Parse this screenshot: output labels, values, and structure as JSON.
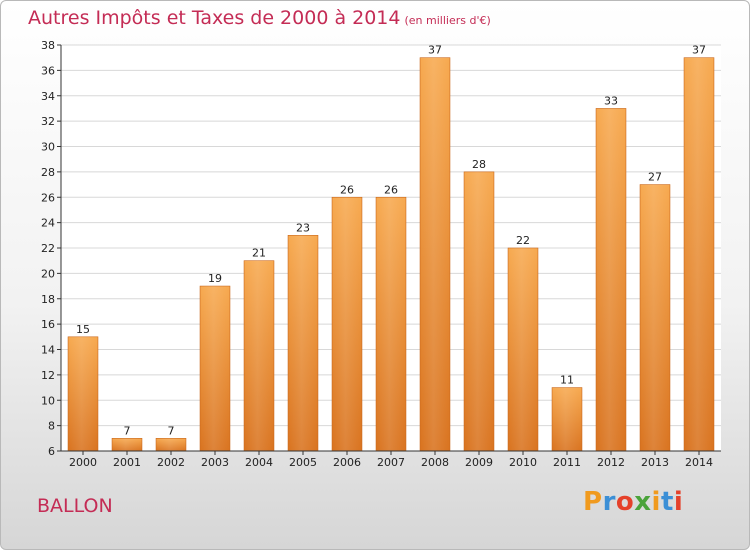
{
  "header": {
    "title": "Autres Impôts et Taxes de 2000 à 2014",
    "unit": "(en milliers d'€)"
  },
  "footer": {
    "commune": "BALLON",
    "brand": "Proxiti"
  },
  "colors": {
    "title": "#c42c55",
    "bar_light": "#f7a94f",
    "bar_dark": "#d9731f",
    "grid": "#d8d8d8",
    "brand_letters": [
      "#f09a1e",
      "#3b8fd6",
      "#e5412a",
      "#4aa33a",
      "#f09a1e",
      "#3b8fd6",
      "#e5412a"
    ]
  },
  "chart_data": {
    "type": "bar",
    "title": "Autres Impôts et Taxes de 2000 à 2014",
    "subtitle": "(en milliers d'€)",
    "xlabel": "",
    "ylabel": "",
    "categories": [
      "2000",
      "2001",
      "2002",
      "2003",
      "2004",
      "2005",
      "2006",
      "2007",
      "2008",
      "2009",
      "2010",
      "2011",
      "2012",
      "2013",
      "2014"
    ],
    "values": [
      15,
      7,
      7,
      19,
      21,
      23,
      26,
      26,
      37,
      28,
      22,
      11,
      33,
      27,
      37
    ],
    "ylim": [
      6,
      38
    ],
    "yticks": [
      6,
      8,
      10,
      12,
      14,
      16,
      18,
      20,
      22,
      24,
      26,
      28,
      30,
      32,
      34,
      36,
      38
    ],
    "grid": true,
    "data_labels": true
  }
}
